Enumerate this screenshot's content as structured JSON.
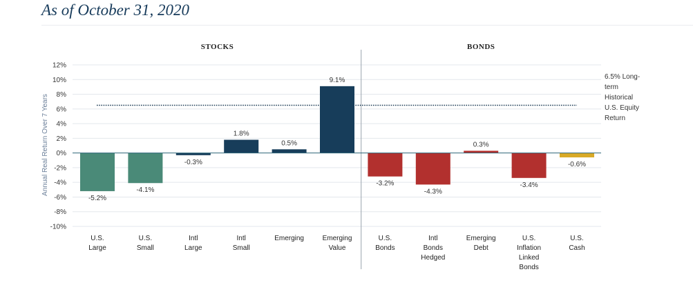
{
  "header": {
    "title": "As of October 31, 2020"
  },
  "chart_data": {
    "type": "bar",
    "title": "",
    "xlabel": "",
    "ylabel": "Annual Real Return Over 7 Years",
    "ylim": [
      -10,
      12
    ],
    "yticks": [
      12,
      10,
      8,
      6,
      4,
      2,
      0,
      -2,
      -4,
      -6,
      -8,
      -10
    ],
    "ytick_labels": [
      "12%",
      "10%",
      "8%",
      "6%",
      "4%",
      "2%",
      "0%",
      "-2%",
      "-4%",
      "-6%",
      "-8%",
      "-10%"
    ],
    "grid": true,
    "groups": [
      {
        "label": "STOCKS",
        "categories": [
          0,
          1,
          2,
          3,
          4,
          5
        ]
      },
      {
        "label": "BONDS",
        "categories": [
          6,
          7,
          8,
          9,
          10
        ]
      }
    ],
    "categories": [
      [
        "U.S.",
        "Large"
      ],
      [
        "U.S.",
        "Small"
      ],
      [
        "Intl",
        "Large"
      ],
      [
        "Intl",
        "Small"
      ],
      [
        "Emerging"
      ],
      [
        "Emerging",
        "Value"
      ],
      [
        "U.S.",
        "Bonds"
      ],
      [
        "Intl",
        "Bonds",
        "Hedged"
      ],
      [
        "Emerging",
        "Debt"
      ],
      [
        "U.S.",
        "Inflation",
        "Linked",
        "Bonds"
      ],
      [
        "U.S.",
        "Cash"
      ]
    ],
    "values": [
      -5.2,
      -4.1,
      -0.3,
      1.8,
      0.5,
      9.1,
      -3.2,
      -4.3,
      0.3,
      -3.4,
      -0.6
    ],
    "value_labels": [
      "-5.2%",
      "-4.1%",
      "-0.3%",
      "1.8%",
      "0.5%",
      "9.1%",
      "-3.2%",
      "-4.3%",
      "0.3%",
      "-3.4%",
      "-0.6%"
    ],
    "colors": [
      "#4a8a78",
      "#4a8a78",
      "#173d5a",
      "#173d5a",
      "#173d5a",
      "#173d5a",
      "#b2302e",
      "#b2302e",
      "#b2302e",
      "#b2302e",
      "#d9aa27"
    ],
    "reference_line": {
      "value": 6.5,
      "style": "dotted",
      "label_lines": [
        "6.5% Long-",
        "term",
        "Historical",
        "U.S. Equity",
        "Return"
      ]
    }
  }
}
